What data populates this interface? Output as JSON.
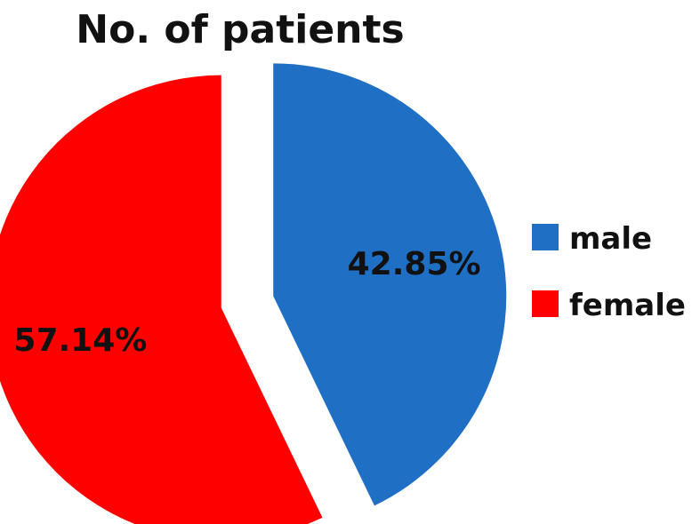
{
  "chart_data": {
    "type": "pie",
    "title": "No. of patients",
    "slices": [
      {
        "name": "male",
        "value": 42.85,
        "label": "42.85%",
        "color": "#1f6fc5"
      },
      {
        "name": "female",
        "value": 57.14,
        "label": "57.14%",
        "color": "#ff0000"
      }
    ],
    "legend": {
      "placement": "right",
      "entries": [
        {
          "label": "male",
          "color": "#1f6fc5"
        },
        {
          "label": "female",
          "color": "#ff0000"
        }
      ]
    }
  }
}
